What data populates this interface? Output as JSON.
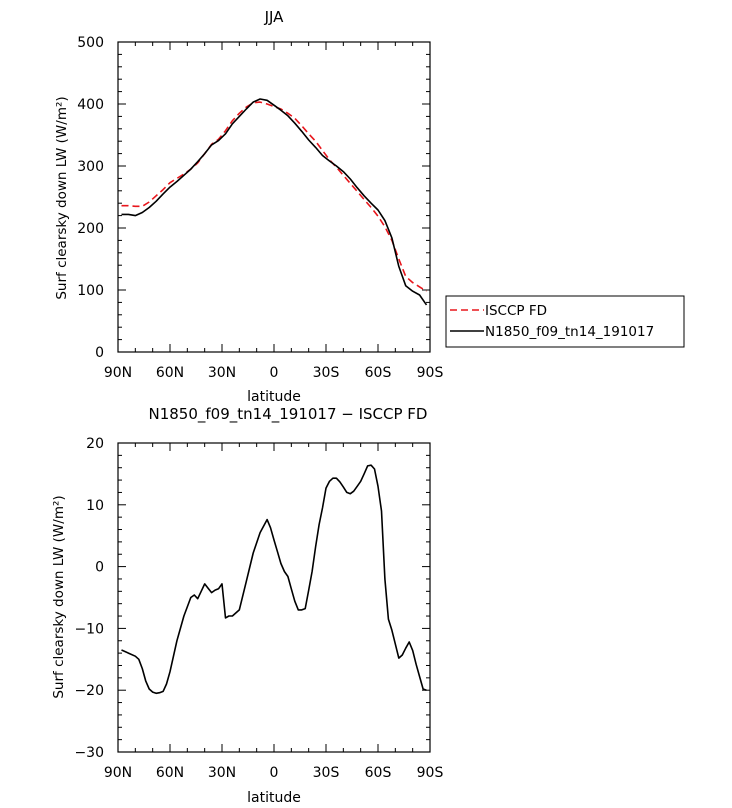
{
  "chart_data": [
    {
      "type": "line",
      "title": "JJA",
      "xlabel": "latitude",
      "ylabel": "Surf clearsky down LW (W/m²)",
      "ylim": [
        0,
        500
      ],
      "yticks": [
        0,
        100,
        200,
        300,
        400,
        500
      ],
      "xlim": [
        -90,
        90
      ],
      "xticks": [
        {
          "v": -90,
          "label": "90N"
        },
        {
          "v": -60,
          "label": "60N"
        },
        {
          "v": -30,
          "label": "30N"
        },
        {
          "v": 0,
          "label": "0"
        },
        {
          "v": 30,
          "label": "30S"
        },
        {
          "v": 60,
          "label": "60S"
        },
        {
          "v": 90,
          "label": "90S"
        }
      ],
      "legend_position": "right",
      "series": [
        {
          "name": "ISCCP FD",
          "color": "#e8161c",
          "dash": "dashed",
          "x": [
            -88,
            -84,
            -80,
            -76,
            -72,
            -68,
            -64,
            -60,
            -56,
            -52,
            -48,
            -44,
            -40,
            -36,
            -32,
            -28,
            -24,
            -20,
            -16,
            -12,
            -8,
            -4,
            0,
            4,
            8,
            12,
            16,
            20,
            24,
            28,
            32,
            36,
            40,
            44,
            48,
            52,
            56,
            60,
            64,
            68,
            72,
            76,
            80,
            84,
            88
          ],
          "values": [
            236,
            236,
            235,
            235,
            242,
            252,
            262,
            273,
            280,
            287,
            295,
            305,
            320,
            335,
            343,
            357,
            373,
            385,
            395,
            402,
            403,
            400,
            396,
            392,
            385,
            377,
            365,
            352,
            340,
            325,
            310,
            298,
            285,
            272,
            259,
            246,
            233,
            219,
            202,
            180,
            150,
            122,
            112,
            105,
            98
          ]
        },
        {
          "name": "N1850_f09_tn14_191017",
          "color": "#000000",
          "dash": "solid",
          "x": [
            -88,
            -84,
            -80,
            -76,
            -72,
            -68,
            -64,
            -60,
            -56,
            -52,
            -48,
            -44,
            -40,
            -36,
            -32,
            -28,
            -24,
            -20,
            -16,
            -12,
            -8,
            -4,
            0,
            4,
            8,
            12,
            16,
            20,
            24,
            28,
            32,
            36,
            40,
            44,
            48,
            52,
            56,
            60,
            64,
            68,
            72,
            76,
            80,
            84,
            88
          ],
          "values": [
            222,
            222,
            220,
            225,
            233,
            243,
            255,
            266,
            275,
            285,
            295,
            307,
            320,
            334,
            341,
            352,
            368,
            380,
            392,
            403,
            408,
            406,
            398,
            390,
            381,
            369,
            356,
            342,
            330,
            317,
            308,
            300,
            291,
            279,
            265,
            252,
            240,
            229,
            212,
            184,
            138,
            107,
            98,
            92,
            76
          ]
        }
      ]
    },
    {
      "type": "line",
      "title": "N1850_f09_tn14_191017 − ISCCP FD",
      "xlabel": "latitude",
      "ylabel": "Surf clearsky down LW (W/m²)",
      "ylim": [
        -30,
        20
      ],
      "yticks": [
        -30,
        -20,
        -10,
        0,
        10,
        20
      ],
      "xlim": [
        -90,
        90
      ],
      "xticks": [
        {
          "v": -90,
          "label": "90N"
        },
        {
          "v": -60,
          "label": "60N"
        },
        {
          "v": -30,
          "label": "30N"
        },
        {
          "v": 0,
          "label": "0"
        },
        {
          "v": 30,
          "label": "30S"
        },
        {
          "v": 60,
          "label": "60S"
        },
        {
          "v": 90,
          "label": "90S"
        }
      ],
      "series": [
        {
          "color": "#000000",
          "x": [
            -88,
            -84,
            -80,
            -78,
            -76,
            -74,
            -72,
            -70,
            -68,
            -66,
            -64,
            -62,
            -60,
            -56,
            -52,
            -48,
            -46,
            -44,
            -42,
            -40,
            -38,
            -36,
            -34,
            -32,
            -30,
            -28,
            -26,
            -24,
            -20,
            -16,
            -12,
            -8,
            -4,
            -2,
            0,
            2,
            4,
            6,
            8,
            10,
            12,
            14,
            16,
            18,
            20,
            22,
            24,
            26,
            28,
            30,
            32,
            34,
            36,
            38,
            40,
            42,
            44,
            46,
            48,
            50,
            52,
            54,
            56,
            58,
            60,
            62,
            64,
            66,
            68,
            70,
            72,
            74,
            76,
            78,
            80,
            82,
            84,
            86,
            88
          ],
          "values": [
            -13.5,
            -14,
            -14.5,
            -15,
            -16.5,
            -18.5,
            -19.8,
            -20.3,
            -20.5,
            -20.4,
            -20.2,
            -19,
            -17,
            -12,
            -8,
            -5,
            -4.6,
            -5.2,
            -4,
            -2.8,
            -3.5,
            -4.2,
            -3.8,
            -3.6,
            -2.8,
            -8.3,
            -8.0,
            -8.0,
            -7,
            -2.4,
            2.2,
            5.5,
            7.6,
            6.3,
            4.3,
            2.4,
            0.5,
            -0.8,
            -1.6,
            -3.6,
            -5.6,
            -7.0,
            -7.0,
            -6.8,
            -3.8,
            -0.8,
            3.2,
            6.8,
            9.5,
            12.7,
            13.8,
            14.3,
            14.3,
            13.7,
            12.9,
            12.0,
            11.8,
            12.2,
            13.0,
            13.8,
            15.0,
            16.3,
            16.4,
            15.8,
            13.0,
            9.0,
            -2,
            -8.5,
            -10.3,
            -12.5,
            -14.8,
            -14.3,
            -13.2,
            -12.2,
            -13.6,
            -15.8,
            -17.8,
            -19.8,
            -20
          ]
        }
      ]
    }
  ]
}
